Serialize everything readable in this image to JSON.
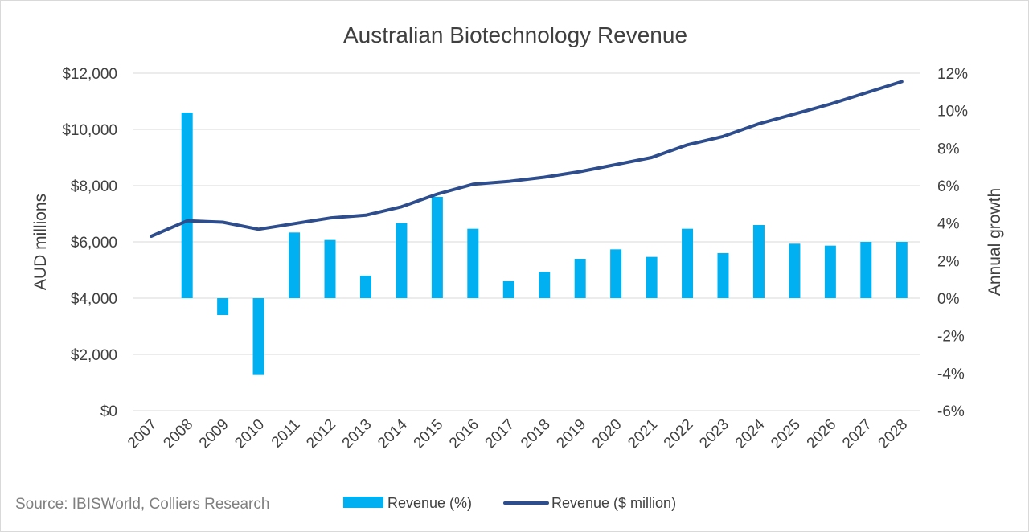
{
  "source": "Source: IBISWorld, Colliers Research",
  "chart_data": {
    "type": "bar+line",
    "title": "Australian Biotechnology Revenue",
    "categories": [
      "2007",
      "2008",
      "2009",
      "2010",
      "2011",
      "2012",
      "2013",
      "2014",
      "2015",
      "2016",
      "2017",
      "2018",
      "2019",
      "2020",
      "2021",
      "2022",
      "2023",
      "2024",
      "2025",
      "2026",
      "2027",
      "2028"
    ],
    "series": [
      {
        "name": "Revenue (%)",
        "type": "bar",
        "axis": "right",
        "color": "#00b0f0",
        "values": [
          null,
          9.9,
          -0.9,
          -4.1,
          3.5,
          3.1,
          1.2,
          4.0,
          5.4,
          3.7,
          0.9,
          1.4,
          2.1,
          2.6,
          2.2,
          3.7,
          2.4,
          3.9,
          2.9,
          2.8,
          3.0,
          3.0
        ]
      },
      {
        "name": "Revenue ($ million)",
        "type": "line",
        "axis": "left",
        "color": "#2e4d8c",
        "values": [
          6200,
          6750,
          6700,
          6450,
          6650,
          6850,
          6950,
          7250,
          7700,
          8050,
          8150,
          8300,
          8500,
          8750,
          9000,
          9450,
          9750,
          10200,
          10550,
          10900,
          11300,
          11700
        ]
      }
    ],
    "y_left": {
      "label": "AUD millions",
      "min": 0,
      "max": 12000,
      "ticks": [
        0,
        2000,
        4000,
        6000,
        8000,
        10000,
        12000
      ],
      "tick_labels": [
        "$0",
        "$2,000",
        "$4,000",
        "$6,000",
        "$8,000",
        "$10,000",
        "$12,000"
      ]
    },
    "y_right": {
      "label": "Annual growth",
      "min": -6,
      "max": 12,
      "ticks": [
        -6,
        -4,
        -2,
        0,
        2,
        4,
        6,
        8,
        10,
        12
      ],
      "tick_labels": [
        "-6%",
        "-4%",
        "-2%",
        "0%",
        "2%",
        "4%",
        "6%",
        "8%",
        "10%",
        "12%"
      ]
    },
    "grid": true,
    "legend_position": "bottom"
  }
}
